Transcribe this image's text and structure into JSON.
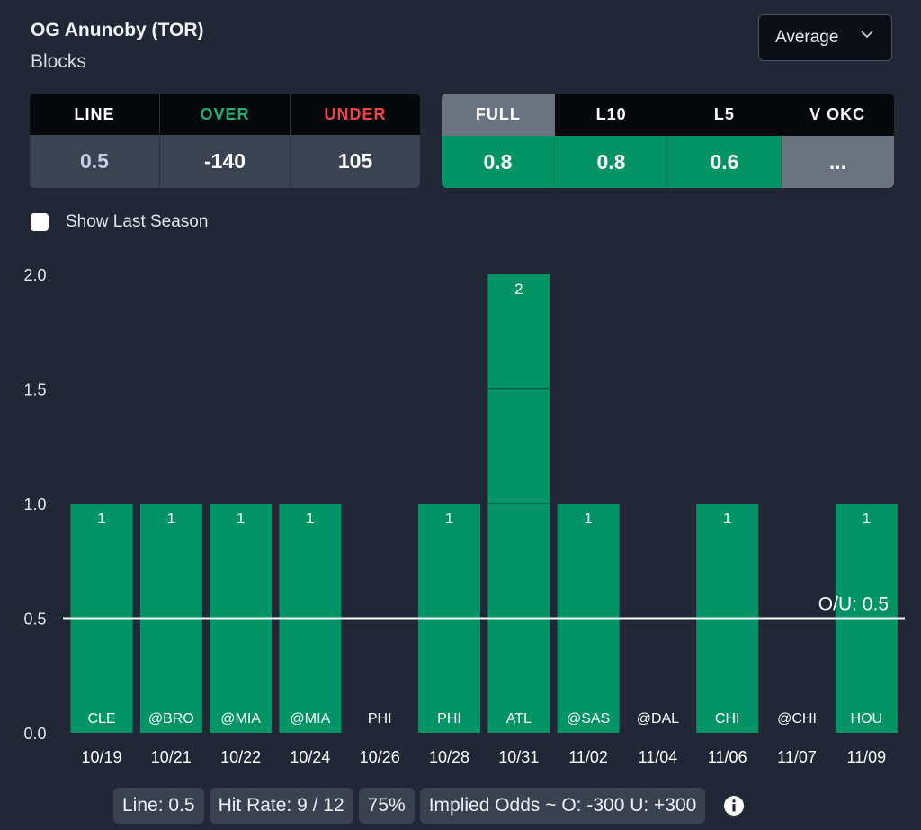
{
  "header": {
    "player": "OG Anunoby (TOR)",
    "stat": "Blocks"
  },
  "dropdown": {
    "selected": "Average"
  },
  "odds": {
    "headers": [
      {
        "label": "LINE",
        "color": "#ffffff"
      },
      {
        "label": "OVER",
        "color": "#22b07a"
      },
      {
        "label": "UNDER",
        "color": "#ef4444"
      }
    ],
    "values": [
      {
        "value": "0.5",
        "color": "#c7cbe8"
      },
      {
        "value": "-140",
        "color": "#ffffff"
      },
      {
        "value": "105",
        "color": "#ffffff"
      }
    ]
  },
  "averages": {
    "tabs": [
      "FULL",
      "L10",
      "L5",
      "V OKC"
    ],
    "values": [
      "0.8",
      "0.8",
      "0.6",
      "..."
    ]
  },
  "show_last_season": {
    "label": "Show Last Season",
    "checked": false
  },
  "chart_data": {
    "type": "bar",
    "categories": [
      "10/19",
      "10/21",
      "10/22",
      "10/24",
      "10/26",
      "10/28",
      "10/31",
      "11/02",
      "11/04",
      "11/06",
      "11/07",
      "11/09"
    ],
    "opponents": [
      "CLE",
      "@BRO",
      "@MIA",
      "@MIA",
      "PHI",
      "PHI",
      "ATL",
      "@SAS",
      "@DAL",
      "CHI",
      "@CHI",
      "HOU"
    ],
    "values": [
      1,
      1,
      1,
      1,
      0,
      1,
      2,
      1,
      0,
      1,
      0,
      1
    ],
    "value_labels": [
      "1",
      "1",
      "1",
      "1",
      "",
      "1",
      "2",
      "1",
      "",
      "1",
      "",
      "1"
    ],
    "yticks": [
      "0.0",
      "0.5",
      "1.0",
      "1.5",
      "2.0"
    ],
    "ylim": [
      0,
      2
    ],
    "line": {
      "value": 0.5,
      "label": "O/U: 0.5"
    },
    "bar_color": "#039466"
  },
  "summary": {
    "line": "Line: 0.5",
    "hit_rate": "Hit Rate: 9 / 12",
    "percent": "75%",
    "implied": "Implied Odds ~ O: -300 U: +300"
  }
}
